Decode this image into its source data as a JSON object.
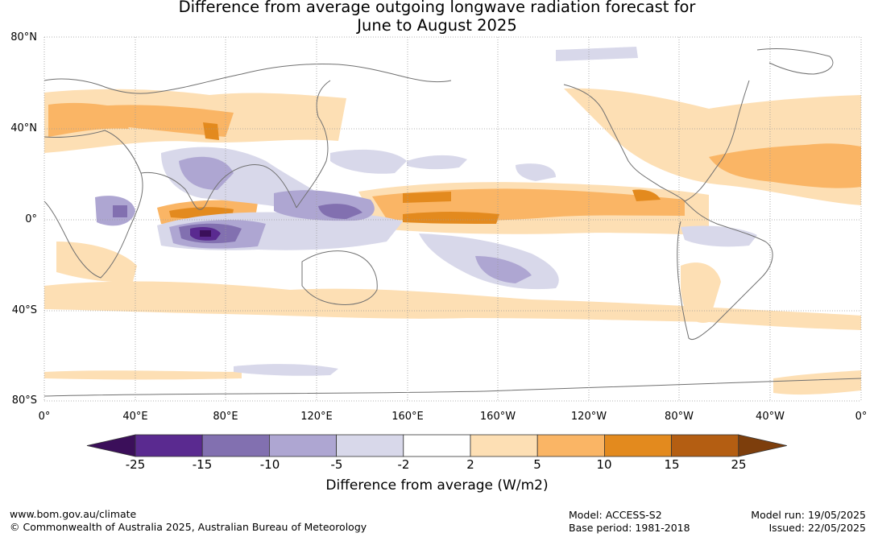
{
  "title": {
    "line1": "Difference from average outgoing longwave radiation forecast for",
    "line2": "June to August 2025"
  },
  "map": {
    "lat_labels": [
      "80°N",
      "40°N",
      "0°",
      "40°S",
      "80°S"
    ],
    "lon_labels": [
      "0°",
      "40°E",
      "80°E",
      "120°E",
      "160°E",
      "160°W",
      "120°W",
      "80°W",
      "40°W",
      "0°"
    ],
    "projection": "equirectangular, Pacific-centred (0° to 360°)",
    "lat_range": [
      -80,
      80
    ],
    "lon_range": [
      0,
      360
    ],
    "anomaly_regions": [
      {
        "name": "Northern Africa–Middle East band",
        "lat": [
          28,
          50
        ],
        "lon": [
          0,
          70
        ],
        "class": "2 to 5 with 5 to 10 patches"
      },
      {
        "name": "Central Asia / north India",
        "lat": [
          35,
          47
        ],
        "lon": [
          45,
          90
        ],
        "class": "5 to 10"
      },
      {
        "name": "Arabian Sea strip",
        "lat": [
          2,
          8
        ],
        "lon": [
          52,
          80
        ],
        "class": "10 to 15"
      },
      {
        "name": "Eastern Indian Ocean south of equator",
        "lat": [
          -12,
          -2
        ],
        "lon": [
          58,
          115
        ],
        "class": "-10 to -25"
      },
      {
        "name": "Maritime continent",
        "lat": [
          -8,
          10
        ],
        "lon": [
          95,
          150
        ],
        "class": "-5 to -10"
      },
      {
        "name": "Central Pacific ITCZ band",
        "lat": [
          -4,
          15
        ],
        "lon": [
          150,
          280
        ],
        "class": "5 to 10 with 10 to 15 core"
      },
      {
        "name": "South Pacific convergence zone",
        "lat": [
          -30,
          -8
        ],
        "lon": [
          165,
          215
        ],
        "class": "-5 to -10"
      },
      {
        "name": "North Atlantic band",
        "lat": [
          15,
          45
        ],
        "lon": [
          290,
          360
        ],
        "class": "2 to 10"
      },
      {
        "name": "Southern hemisphere 30–45S belt",
        "lat": [
          -48,
          -30
        ],
        "lon": [
          0,
          360
        ],
        "class": "2 to 5"
      }
    ]
  },
  "colorbar": {
    "ticks": [
      "-25",
      "-15",
      "-10",
      "-5",
      "-2",
      "2",
      "5",
      "10",
      "15",
      "25"
    ],
    "colors": [
      "#3b0f5a",
      "#5a2a90",
      "#8270b0",
      "#aea6d2",
      "#d8d8ea",
      "#ffffff",
      "#fddfb4",
      "#fab565",
      "#e38a1e",
      "#b45e12",
      "#7d3e0c"
    ],
    "label": "Difference from average (W/m2)"
  },
  "footer": {
    "website": "www.bom.gov.au/climate",
    "copyright": "© Commonwealth of Australia 2025, Australian Bureau of Meteorology",
    "model": "Model: ACCESS-S2",
    "base_period": "Base period: 1981-2018",
    "model_run": "Model run: 19/05/2025",
    "issued": "Issued: 22/05/2025"
  }
}
